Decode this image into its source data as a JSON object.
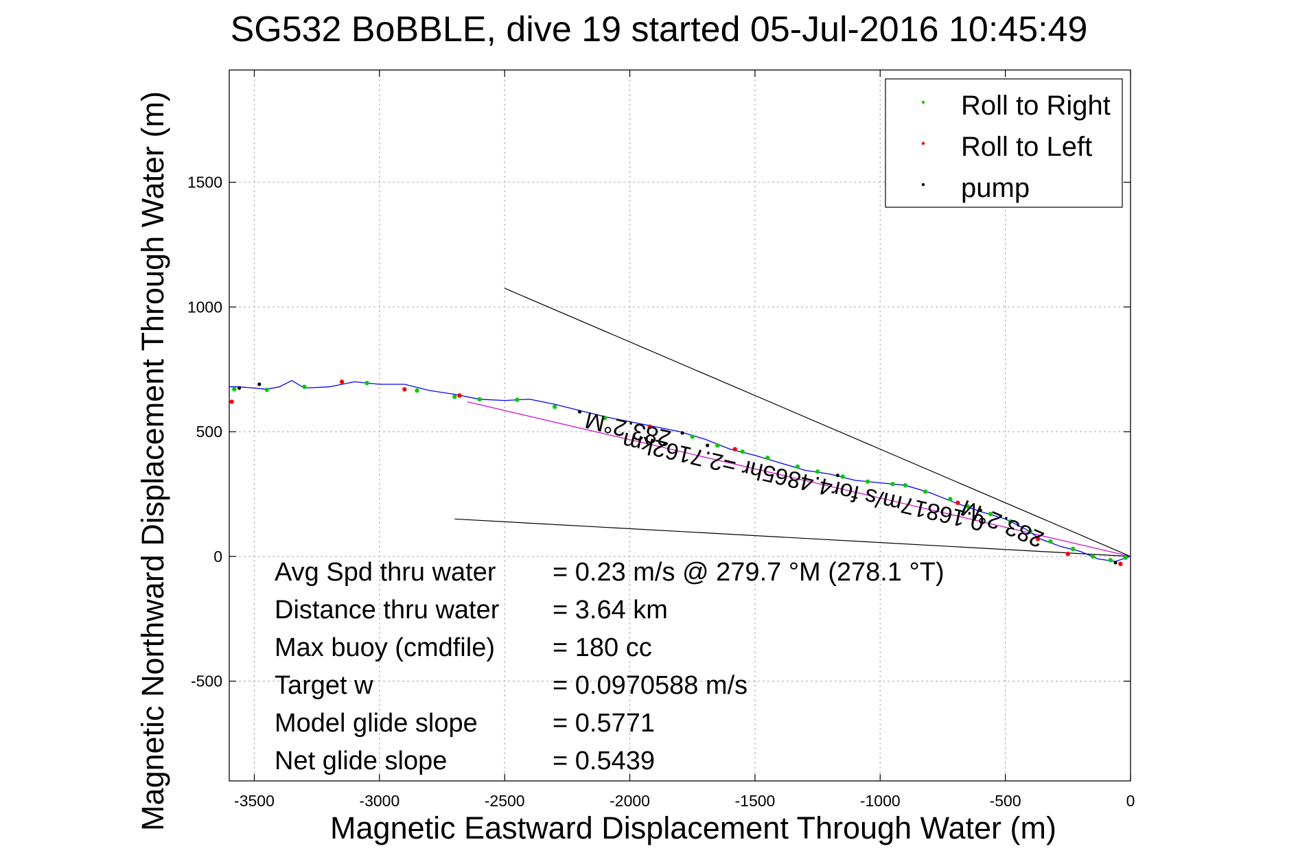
{
  "title": "SG532 BoBBLE, dive 19 started 05-Jul-2016 10:45:49",
  "chart_data": {
    "type": "line",
    "title": "SG532 BoBBLE, dive 19 started 05-Jul-2016 10:45:49",
    "xlabel": "Magnetic Eastward Displacement Through Water (m)",
    "ylabel": "Magnetic Northward Displacement Through Water (m)",
    "xlim": [
      -3600,
      0
    ],
    "ylim": [
      -900,
      1950
    ],
    "xticks": [
      -3500,
      -3000,
      -2500,
      -2000,
      -1500,
      -1000,
      -500,
      0
    ],
    "yticks": [
      -500,
      0,
      500,
      1000,
      1500
    ],
    "xtick_labels": [
      "-3500",
      "-3000",
      "-2500",
      "-2000",
      "-1500",
      "-1000",
      "-500",
      "0"
    ],
    "ytick_labels": [
      "-500",
      "0",
      "500",
      "1000",
      "1500"
    ],
    "grid": true,
    "legend_position": "top-right",
    "legend": [
      {
        "label": "Roll to Right",
        "color": "#00cc00"
      },
      {
        "label": "Roll to Left",
        "color": "#ff0000"
      },
      {
        "label": "pump",
        "color": "#000000"
      }
    ],
    "track": {
      "name": "track",
      "color": "#0000ff",
      "x": [
        0,
        -60,
        -130,
        -200,
        -280,
        -360,
        -420,
        -500,
        -600,
        -700,
        -800,
        -900,
        -1000,
        -1100,
        -1200,
        -1300,
        -1400,
        -1500,
        -1600,
        -1700,
        -1800,
        -1900,
        -2000,
        -2100,
        -2200,
        -2300,
        -2400,
        -2500,
        -2600,
        -2700,
        -2800,
        -2900,
        -3000,
        -3100,
        -3200,
        -3300,
        -3350,
        -3400,
        -3450,
        -3500,
        -3560,
        -3600
      ],
      "y": [
        0,
        -20,
        -10,
        20,
        40,
        70,
        110,
        150,
        180,
        215,
        255,
        285,
        295,
        305,
        330,
        345,
        375,
        405,
        430,
        470,
        500,
        520,
        540,
        560,
        585,
        610,
        630,
        625,
        630,
        650,
        665,
        690,
        690,
        700,
        680,
        675,
        705,
        680,
        670,
        675,
        680,
        680
      ]
    },
    "fit_line": {
      "name": "fit",
      "color": "#cc00cc",
      "x": [
        0,
        -2650
      ],
      "y": [
        0,
        620
      ]
    },
    "heading_lines": [
      {
        "x": [
          0,
          -2500
        ],
        "y": [
          0,
          1075
        ],
        "color": "#000000"
      },
      {
        "x": [
          0,
          -2700
        ],
        "y": [
          0,
          150
        ],
        "color": "#000000"
      }
    ],
    "markers": {
      "roll_right": {
        "color": "#00cc00",
        "x": [
          -20,
          -80,
          -150,
          -230,
          -320,
          -400,
          -480,
          -560,
          -650,
          -720,
          -820,
          -900,
          -950,
          -1050,
          -1150,
          -1250,
          -1330,
          -1450,
          -1550,
          -1650,
          -1750,
          -2100,
          -2300,
          -2450,
          -2600,
          -2700,
          -2850,
          -3050,
          -3300,
          -3450,
          -3580
        ],
        "y": [
          -5,
          -15,
          0,
          30,
          60,
          100,
          140,
          170,
          200,
          230,
          260,
          285,
          290,
          300,
          320,
          340,
          360,
          395,
          420,
          445,
          480,
          555,
          600,
          628,
          630,
          640,
          665,
          695,
          680,
          668,
          670
        ]
      },
      "roll_left": {
        "color": "#ff0000",
        "x": [
          -40,
          -250,
          -370,
          -690,
          -1580,
          -1920,
          -2680,
          -2900,
          -3150,
          -3590
        ],
        "y": [
          -30,
          10,
          70,
          215,
          430,
          520,
          645,
          670,
          700,
          620
        ]
      },
      "pump": {
        "color": "#000000",
        "x": [
          -60,
          -600,
          -1170,
          -1690,
          -1790,
          -2200,
          -3480,
          -3560
        ],
        "y": [
          -25,
          185,
          325,
          445,
          495,
          580,
          690,
          675
        ]
      }
    },
    "rotated_annotations": [
      {
        "text": "283.2°M",
        "angle_deg": 193
      },
      {
        "text": "0.16817m/s for4.4865hr =2.7162km",
        "angle_deg": 193
      },
      {
        "text": "283.2°M",
        "angle_deg": 203
      }
    ],
    "stats": [
      {
        "label": "Avg Spd thru water",
        "value": "=  0.23 m/s @ 279.7 °M (278.1 °T)"
      },
      {
        "label": "Distance thru water",
        "value": "=  3.64 km"
      },
      {
        "label": "Max buoy (cmdfile)",
        "value": "= 180 cc"
      },
      {
        "label": "Target w",
        "value": "= 0.0970588 m/s"
      },
      {
        "label": "Model glide slope",
        "value": "= 0.5771"
      },
      {
        "label": "Net glide slope",
        "value": "= 0.5439"
      }
    ]
  }
}
